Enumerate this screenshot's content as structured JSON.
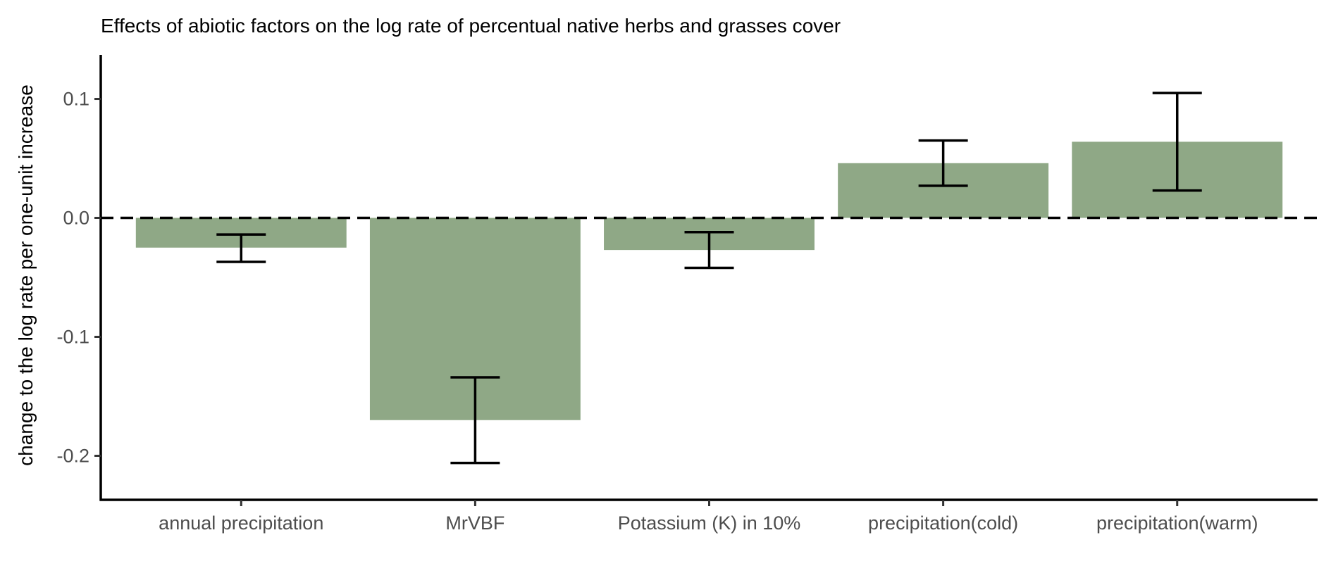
{
  "chart_data": {
    "type": "bar",
    "title": "Effects of abiotic factors on the log rate of percentual native herbs and grasses cover",
    "xlabel": "",
    "ylabel": "change to the log rate per one-unit increase",
    "categories": [
      "annual precipitation",
      "MrVBF",
      "Potassium (K) in 10%",
      "precipitation(cold)",
      "precipitation(warm)"
    ],
    "values": [
      -0.025,
      -0.17,
      -0.027,
      0.046,
      0.064
    ],
    "error_low": [
      -0.037,
      -0.206,
      -0.042,
      0.027,
      0.023
    ],
    "error_high": [
      -0.014,
      -0.134,
      -0.012,
      0.065,
      0.105
    ],
    "yticks": [
      -0.2,
      -0.1,
      0.0,
      0.1
    ],
    "ytick_labels": [
      "-0.2",
      "-0.1",
      "0.0",
      "0.1"
    ],
    "ylim": [
      -0.237,
      0.137
    ],
    "reference_line": 0,
    "grid": false,
    "bar_color": "#8fa886",
    "error_bar_color": "#000000"
  }
}
